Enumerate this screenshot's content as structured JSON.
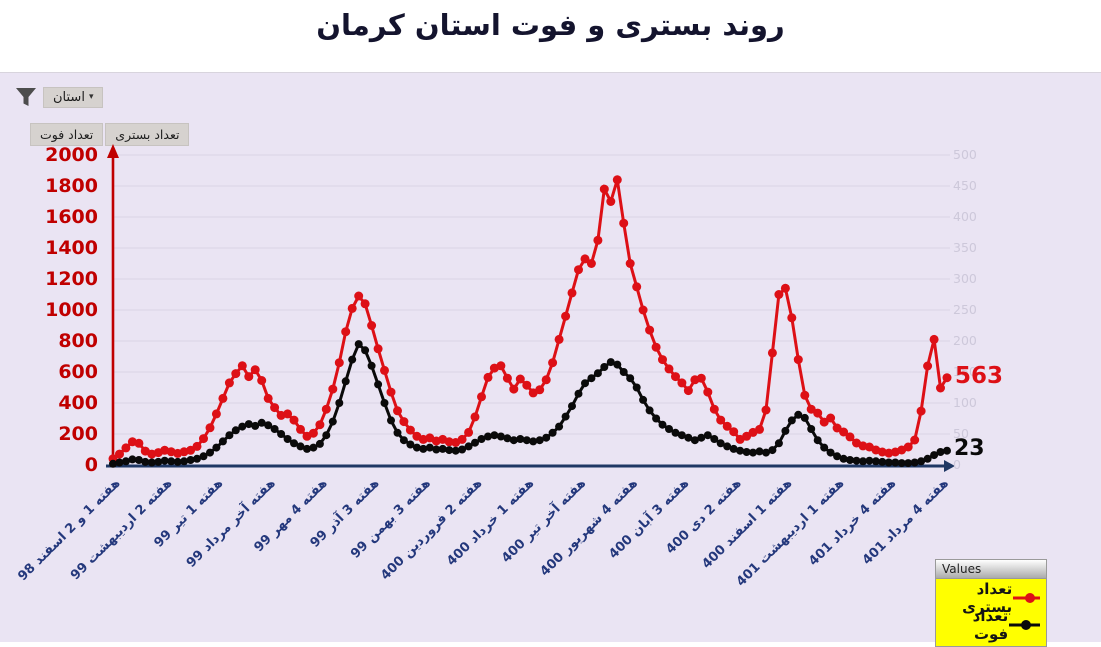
{
  "title": "روند بستری و فوت استان کرمان",
  "toolbar": {
    "filter_label": "استان",
    "filter_caret": "▾",
    "tabs": [
      "تعداد فوت",
      "تعداد بستری"
    ]
  },
  "chart_data": {
    "type": "line",
    "title": "روند بستری و فوت استان کرمان",
    "grid": true,
    "legend": {
      "title": "Values",
      "position": "bottom-right",
      "background": "#ffff00"
    },
    "left_axis": {
      "min": 0,
      "max": 2000,
      "step": 200,
      "color": "#c00000"
    },
    "right_axis": {
      "min": 0,
      "max": 500,
      "step": 50,
      "color": "#cdc8da"
    },
    "x_tick_every": 8,
    "x_tick_labels": [
      "هفته 1 و 2 اسفند 98",
      "هفته 2 اردیبهشت 99",
      "هفته 1 تیر 99",
      "هفته آخر مرداد 99",
      "هفته 4 مهر 99",
      "هفته 3 آذر 99",
      "هفته 3 بهمن 99",
      "هفته 2 فروردین 400",
      "هفته 1 خرداد 400",
      "هفته آخر تیر 400",
      "هفته 4 شهریور 400",
      "هفته 3 آبان 400",
      "هفته 2 دی 400",
      "هفته 1 اسفند 400",
      "هفته 1 اردیبهشت 401",
      "هفته 4 خرداد 401",
      "هفته 4 مرداد 401"
    ],
    "series": [
      {
        "name": "تعداد بستری",
        "data_name": "admissions",
        "color": "#dd1016",
        "axis": "left",
        "marker_r": 4.5,
        "end_label": "563",
        "values": [
          40,
          70,
          110,
          150,
          140,
          90,
          70,
          80,
          95,
          85,
          75,
          85,
          95,
          120,
          170,
          240,
          330,
          430,
          530,
          590,
          640,
          570,
          615,
          545,
          430,
          370,
          320,
          330,
          290,
          230,
          185,
          205,
          260,
          360,
          490,
          660,
          860,
          1010,
          1090,
          1040,
          900,
          750,
          610,
          470,
          350,
          280,
          225,
          185,
          165,
          175,
          155,
          165,
          150,
          145,
          165,
          210,
          310,
          440,
          565,
          625,
          640,
          560,
          490,
          555,
          515,
          465,
          485,
          550,
          660,
          810,
          960,
          1110,
          1260,
          1330,
          1300,
          1450,
          1780,
          1700,
          1840,
          1560,
          1300,
          1150,
          1000,
          870,
          760,
          680,
          620,
          570,
          530,
          480,
          550,
          560,
          470,
          360,
          290,
          250,
          215,
          165,
          185,
          210,
          230,
          355,
          723,
          1100,
          1140,
          950,
          680,
          450,
          360,
          335,
          277,
          303,
          239,
          213,
          181,
          142,
          123,
          116,
          97,
          84,
          77,
          84,
          97,
          116,
          161,
          348,
          639,
          810,
          497,
          563
        ]
      },
      {
        "name": "تعداد فوت",
        "data_name": "deaths",
        "color": "#0a0a0a",
        "axis": "right",
        "marker_r": 4,
        "end_label": "23",
        "values": [
          2,
          4,
          6,
          9,
          8,
          5,
          4,
          5,
          7,
          6,
          5,
          6,
          8,
          10,
          14,
          20,
          28,
          38,
          48,
          56,
          62,
          66,
          63,
          68,
          64,
          58,
          50,
          42,
          35,
          30,
          26,
          28,
          34,
          48,
          70,
          100,
          135,
          170,
          195,
          185,
          160,
          130,
          100,
          72,
          52,
          40,
          33,
          28,
          26,
          28,
          25,
          26,
          24,
          23,
          25,
          30,
          36,
          42,
          46,
          48,
          46,
          43,
          40,
          42,
          40,
          38,
          40,
          44,
          52,
          62,
          78,
          95,
          115,
          132,
          140,
          148,
          158,
          166,
          162,
          150,
          140,
          125,
          105,
          88,
          75,
          65,
          58,
          52,
          48,
          44,
          40,
          44,
          48,
          42,
          35,
          30,
          26,
          23,
          21,
          20,
          22,
          20,
          24,
          35,
          55,
          72,
          81,
          76,
          58,
          40,
          28,
          20,
          14,
          10,
          8,
          7,
          6,
          7,
          6,
          5,
          4,
          4,
          3,
          3,
          4,
          6,
          10,
          16,
          21,
          23
        ]
      }
    ]
  }
}
